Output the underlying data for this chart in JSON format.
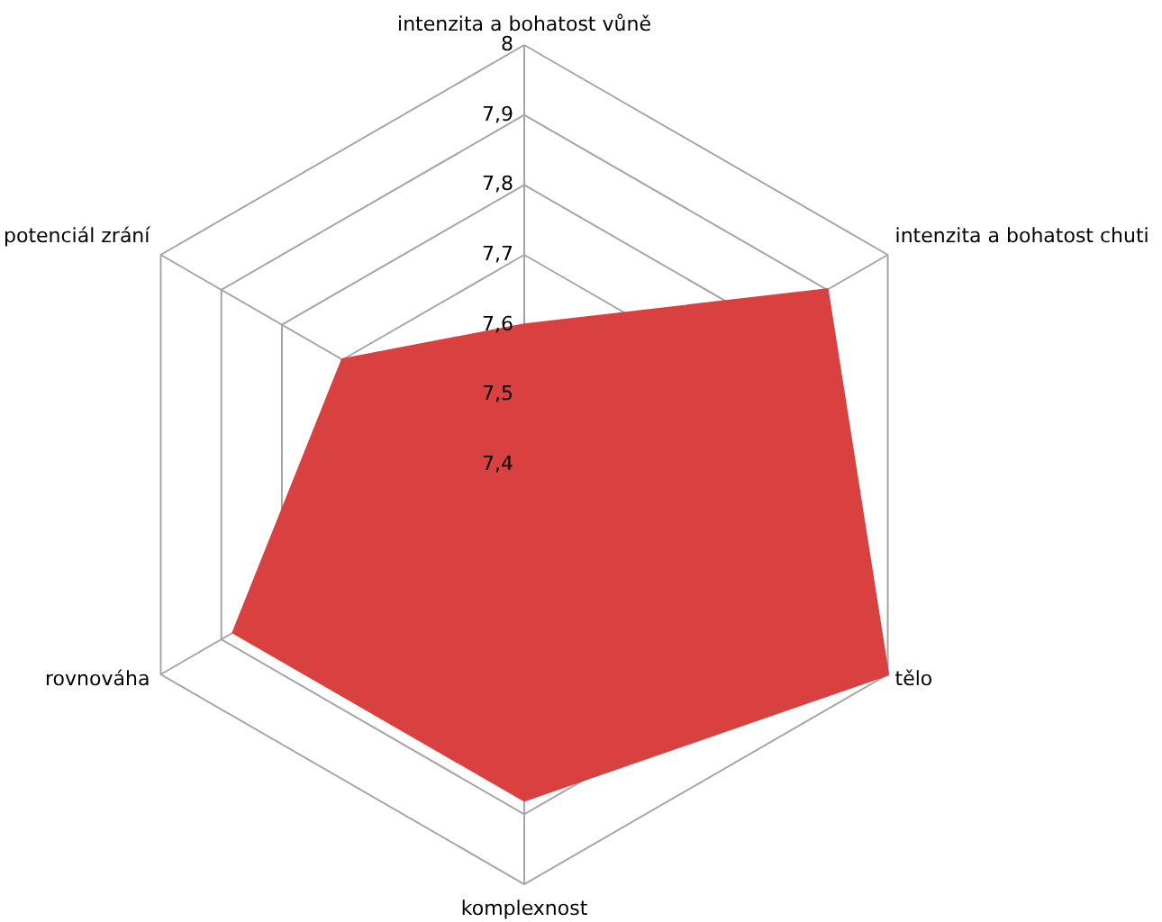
{
  "chart_data": {
    "type": "radar",
    "categories": [
      "intenzita a bohatost vůně",
      "intenzita a bohatost chuti",
      "tělo",
      "komplexnost",
      "rovnováha",
      "potenciál zrání"
    ],
    "series": [
      {
        "color": "#d94141",
        "values": [
          7.6,
          7.9,
          8.0,
          7.88,
          7.88,
          7.7
        ]
      }
    ],
    "ylim": [
      7.4,
      8
    ],
    "yticks": [
      {
        "value": 7.4,
        "label": "7,4"
      },
      {
        "value": 7.5,
        "label": "7,5"
      },
      {
        "value": 7.6,
        "label": "7,6"
      },
      {
        "value": 7.7,
        "label": "7,7"
      },
      {
        "value": 7.8,
        "label": "7,8"
      },
      {
        "value": 7.9,
        "label": "7,9"
      },
      8
    ],
    "grid": true
  }
}
